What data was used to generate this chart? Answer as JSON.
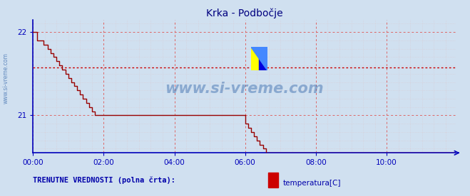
{
  "title": "Krka - Podbočje",
  "title_color": "#000080",
  "bg_color": "#d0e0f0",
  "plot_bg_color": "#d0e0f0",
  "line_color": "#990000",
  "line_color_end": "#330000",
  "axis_color": "#0000bb",
  "grid_color_major": "#dd6666",
  "grid_color_minor": "#ddbbbb",
  "watermark_text": "www.si-vreme.com",
  "watermark_color": "#3366aa",
  "watermark_alpha": 0.45,
  "sidebar_text": "www.si-vreme.com",
  "sidebar_color": "#3366aa",
  "xlim": [
    0,
    287
  ],
  "ylim": [
    20.55,
    22.15
  ],
  "yticks": [
    21,
    22
  ],
  "xtick_labels": [
    "00:00",
    "02:00",
    "04:00",
    "06:00",
    "08:00",
    "10:00"
  ],
  "xtick_positions": [
    0,
    48,
    96,
    144,
    192,
    240
  ],
  "avg_line_y": 21.575,
  "avg_line_color": "#cc0000",
  "legend_label": "temperatura[C]",
  "legend_box_color": "#cc0000",
  "bottom_text": "TRENUTNE VREDNOSTI (polna črta):",
  "bottom_text_color": "#0000aa",
  "temperature_data": [
    22.0,
    22.0,
    22.0,
    21.9,
    21.9,
    21.9,
    21.9,
    21.85,
    21.85,
    21.85,
    21.8,
    21.8,
    21.75,
    21.75,
    21.7,
    21.7,
    21.65,
    21.65,
    21.6,
    21.6,
    21.55,
    21.55,
    21.5,
    21.5,
    21.45,
    21.45,
    21.4,
    21.4,
    21.35,
    21.35,
    21.3,
    21.3,
    21.25,
    21.25,
    21.2,
    21.2,
    21.15,
    21.15,
    21.1,
    21.1,
    21.05,
    21.05,
    21.0,
    21.0,
    21.0,
    21.0,
    21.0,
    21.0,
    21.0,
    21.0,
    21.0,
    21.0,
    21.0,
    21.0,
    21.0,
    21.0,
    21.0,
    21.0,
    21.0,
    21.0,
    21.0,
    21.0,
    21.0,
    21.0,
    21.0,
    21.0,
    21.0,
    21.0,
    21.0,
    21.0,
    21.0,
    21.0,
    21.0,
    21.0,
    21.0,
    21.0,
    21.0,
    21.0,
    21.0,
    21.0,
    21.0,
    21.0,
    21.0,
    21.0,
    21.0,
    21.0,
    21.0,
    21.0,
    21.0,
    21.0,
    21.0,
    21.0,
    21.0,
    21.0,
    21.0,
    21.0,
    21.0,
    21.0,
    21.0,
    21.0,
    21.0,
    21.0,
    21.0,
    21.0,
    21.0,
    21.0,
    21.0,
    21.0,
    21.0,
    21.0,
    21.0,
    21.0,
    21.0,
    21.0,
    21.0,
    21.0,
    21.0,
    21.0,
    21.0,
    21.0,
    21.0,
    21.0,
    21.0,
    21.0,
    21.0,
    21.0,
    21.0,
    21.0,
    21.0,
    21.0,
    21.0,
    21.0,
    21.0,
    21.0,
    21.0,
    21.0,
    21.0,
    21.0,
    21.0,
    21.0,
    21.0,
    21.0,
    21.0,
    21.0,
    20.9,
    20.9,
    20.85,
    20.85,
    20.8,
    20.8,
    20.75,
    20.75,
    20.7,
    20.7,
    20.65,
    20.65,
    20.6,
    20.6,
    20.55,
    20.55,
    20.55,
    20.55,
    20.55,
    20.55,
    20.55,
    20.55,
    20.55,
    20.55,
    20.55,
    20.55,
    20.55,
    20.55,
    20.55,
    20.55,
    20.55,
    20.55,
    20.55,
    20.55,
    20.55,
    20.55,
    20.55,
    20.55,
    20.55,
    20.55,
    20.55,
    20.55,
    20.55,
    20.55,
    20.55,
    20.55,
    20.55,
    20.55,
    20.55,
    20.55,
    20.55,
    20.55,
    20.55,
    20.55,
    20.55,
    20.55,
    20.55,
    20.55,
    20.55,
    20.55,
    20.55,
    20.55,
    20.55,
    20.55,
    20.55,
    20.55,
    20.55,
    20.55,
    20.55,
    20.55,
    20.55,
    20.55,
    20.55,
    20.55,
    20.55,
    20.55,
    20.55,
    20.55,
    20.55,
    20.55,
    20.55,
    20.55,
    20.55,
    20.55,
    20.55,
    20.55,
    20.55,
    20.55,
    20.55,
    20.55,
    20.55,
    20.55,
    20.55,
    20.55,
    20.55,
    20.55,
    20.55,
    20.55,
    20.55,
    20.55,
    20.55,
    20.55,
    20.55,
    20.55,
    20.55,
    20.55,
    20.55,
    20.55,
    20.55,
    20.55,
    20.55,
    20.55,
    20.55,
    20.55,
    20.55,
    20.55,
    20.55,
    20.55,
    20.55,
    20.55,
    20.55,
    20.55,
    20.55,
    20.55,
    20.55,
    20.55,
    20.55,
    20.55,
    20.55,
    20.55,
    20.55,
    20.55,
    20.55,
    20.55,
    20.55,
    20.55,
    20.55,
    20.55,
    20.55,
    20.55,
    20.55,
    20.55,
    20.55
  ]
}
